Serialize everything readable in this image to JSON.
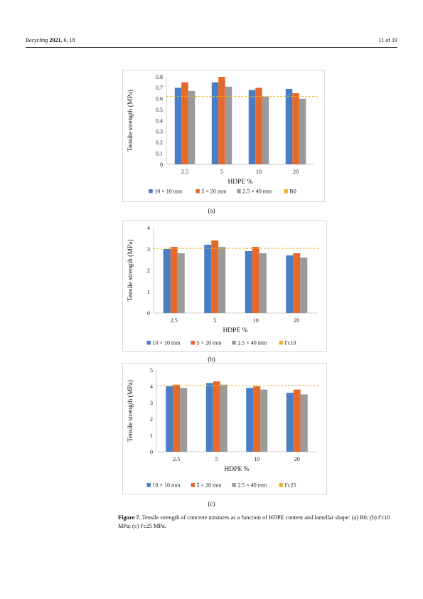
{
  "header": {
    "journal": "Recycling",
    "year": "2021",
    "rest": ", 6, 18",
    "page": "11 of 19"
  },
  "caption": {
    "label": "Figure 7.",
    "text": " Tensile strength of concrete mixtures as a function of HDPE content and lamellar shape: (a) B0; (b) f′c10 MPa; (c) f′c25 MPa."
  },
  "colors": {
    "s1": "#4a7ec4",
    "s2": "#e5692a",
    "s3": "#9a9a9a",
    "ref": "#f0b429"
  },
  "chart_data": [
    {
      "type": "bar",
      "panel": "(a)",
      "categories": [
        "2.5",
        "5",
        "10",
        "20"
      ],
      "series": [
        {
          "name": "10  × 10 mm",
          "values": [
            0.7,
            0.75,
            0.68,
            0.69
          ]
        },
        {
          "name": "5 × 20 mm",
          "values": [
            0.75,
            0.8,
            0.7,
            0.65
          ]
        },
        {
          "name": "2.5 × 40 mm",
          "values": [
            0.67,
            0.71,
            0.62,
            0.6
          ]
        }
      ],
      "reference": {
        "name": "B0",
        "value": 0.62
      },
      "xlabel": "HDPE %",
      "ylabel": "Tensile strength (MPa)",
      "ylim": [
        0,
        0.8
      ],
      "yticks": [
        "0",
        "0.1",
        "0.2",
        "0.3",
        "0.4",
        "0.5",
        "0.6",
        "0.7",
        "0.8"
      ],
      "legend": "bottom"
    },
    {
      "type": "bar",
      "panel": "(b)",
      "categories": [
        "2.5",
        "5",
        "10",
        "20"
      ],
      "series": [
        {
          "name": "10 × 10 mm",
          "values": [
            3.0,
            3.2,
            2.9,
            2.7
          ]
        },
        {
          "name": "5 × 20 mm",
          "values": [
            3.1,
            3.4,
            3.1,
            2.8
          ]
        },
        {
          "name": "2.5 × 40 mm",
          "values": [
            2.8,
            3.1,
            2.8,
            2.6
          ]
        }
      ],
      "reference": {
        "name": "f′c10",
        "value": 3.03
      },
      "xlabel": "HDPE  %",
      "ylabel": "Tensile strength (MPa)",
      "ylim": [
        0,
        4
      ],
      "yticks": [
        "0",
        "1",
        "2",
        "3",
        "4"
      ],
      "legend": "bottom"
    },
    {
      "type": "bar",
      "panel": "(c)",
      "categories": [
        "2.5",
        "5",
        "10",
        "20"
      ],
      "series": [
        {
          "name": "10 × 10 mm",
          "values": [
            4.0,
            4.2,
            3.9,
            3.6
          ]
        },
        {
          "name": "5 × 20 mm",
          "values": [
            4.1,
            4.3,
            4.0,
            3.8
          ]
        },
        {
          "name": "2.5 × 40 mm",
          "values": [
            3.9,
            4.1,
            3.8,
            3.5
          ]
        }
      ],
      "reference": {
        "name": "f′c25",
        "value": 4.05
      },
      "xlabel": "HDPE  %",
      "ylabel": "Tensile strength (MPa)",
      "ylim": [
        0,
        5
      ],
      "yticks": [
        "0",
        "1",
        "2",
        "3",
        "4",
        "5"
      ],
      "legend": "bottom"
    }
  ]
}
